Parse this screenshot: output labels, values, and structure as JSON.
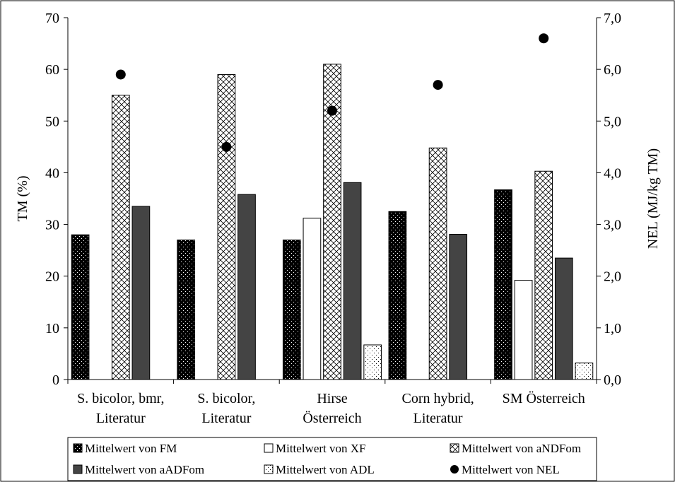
{
  "chart_data": {
    "type": "bar",
    "title": "",
    "categories": [
      [
        "S. bicolor, bmr,",
        "Literatur"
      ],
      [
        "S. bicolor,",
        "Literatur"
      ],
      [
        "Hirse",
        "Österreich"
      ],
      [
        "Corn hybrid,",
        "Literatur"
      ],
      [
        "SM Österreich"
      ]
    ],
    "ylabel_left": "TM (%)",
    "ylabel_right": "NEL (MJ/kg TM)",
    "ylim_left": [
      0,
      70
    ],
    "ylim_right": [
      0,
      7
    ],
    "yticks_left": [
      "0",
      "10",
      "20",
      "30",
      "40",
      "50",
      "60",
      "70"
    ],
    "yticks_right": [
      "0,0",
      "1,0",
      "2,0",
      "3,0",
      "4,0",
      "5,0",
      "6,0",
      "7,0"
    ],
    "series": [
      {
        "name": "Mittelwert von FM",
        "type": "bar",
        "axis": "left",
        "pattern": "dots-dark",
        "values": [
          28,
          27,
          27,
          32.5,
          36.7
        ]
      },
      {
        "name": "Mittelwert von XF",
        "type": "bar",
        "axis": "left",
        "pattern": "white",
        "values": [
          null,
          null,
          31.2,
          null,
          19.2
        ]
      },
      {
        "name": "Mittelwert von aNDFom",
        "type": "bar",
        "axis": "left",
        "pattern": "crosshatch",
        "values": [
          55,
          59,
          61,
          44.8,
          40.3
        ]
      },
      {
        "name": "Mittelwert von aADFom",
        "type": "bar",
        "axis": "left",
        "pattern": "dark-gray",
        "values": [
          33.5,
          35.8,
          38.1,
          28.1,
          23.5
        ]
      },
      {
        "name": "Mittelwert von ADL",
        "type": "bar",
        "axis": "left",
        "pattern": "dots-light",
        "values": [
          null,
          null,
          6.7,
          null,
          3.2
        ]
      },
      {
        "name": "Mittelwert von NEL",
        "type": "scatter",
        "axis": "right",
        "marker": "circle",
        "values": [
          5.9,
          4.5,
          5.2,
          5.7,
          6.6
        ]
      }
    ],
    "legend_position": "bottom",
    "grid": false
  }
}
